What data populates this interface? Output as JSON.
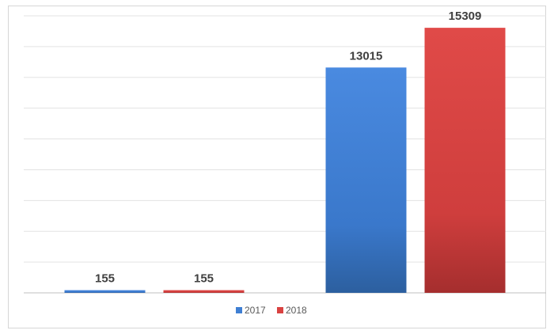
{
  "chart_data": {
    "type": "bar",
    "categories": [
      "",
      ""
    ],
    "series": [
      {
        "name": "2017",
        "values": [
          155,
          13015
        ],
        "color": "#3f7fd3"
      },
      {
        "name": "2018",
        "values": [
          155,
          15309
        ],
        "color": "#d94241"
      }
    ],
    "ylim": [
      0,
      16000
    ],
    "grid": true,
    "legend": "bottom-center",
    "xlabel": "",
    "ylabel": ""
  }
}
